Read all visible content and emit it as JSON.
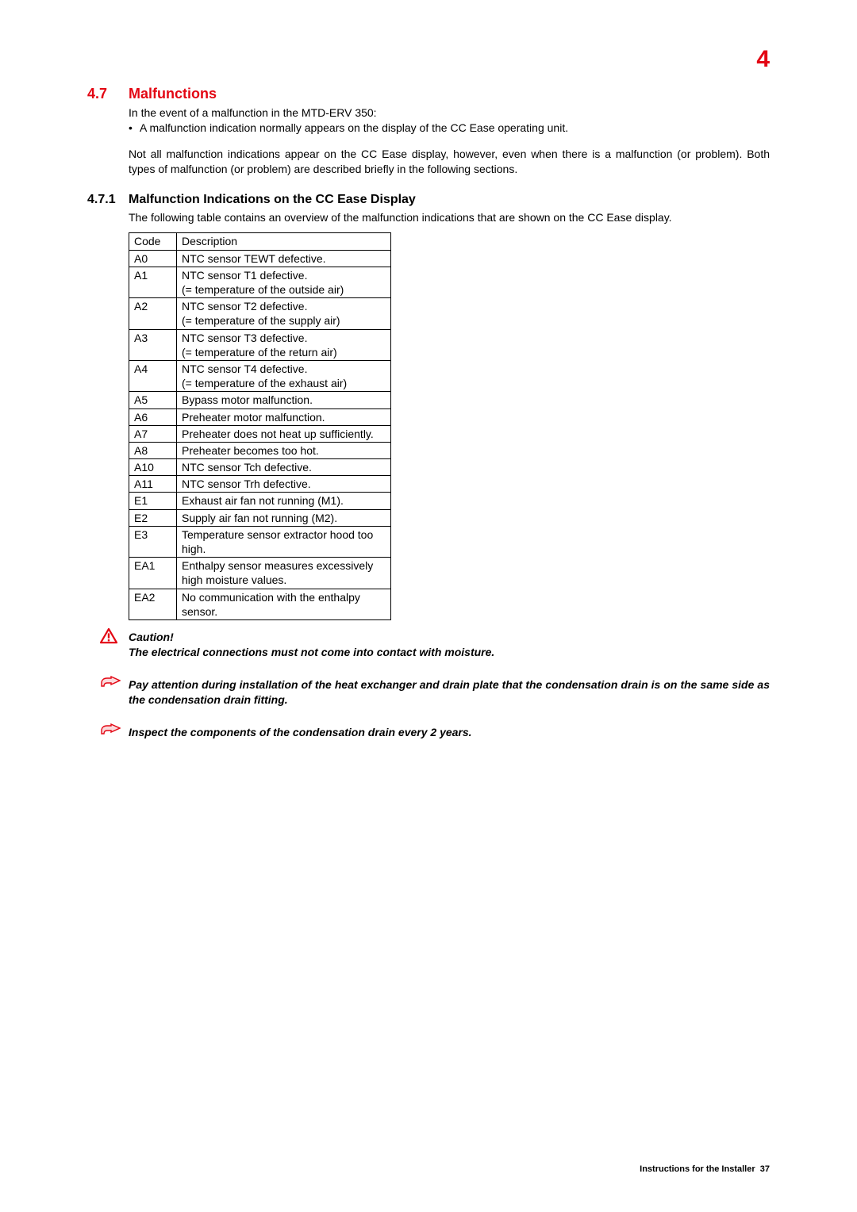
{
  "chapter_number": "4",
  "section": {
    "num": "4.7",
    "title": "Malfunctions"
  },
  "intro_line": "In the event of a malfunction in the MTD-ERV 350:",
  "intro_bullet": "A malfunction indication normally appears on the display of the CC Ease operating unit.",
  "intro_para2": "Not all malfunction indications appear on the CC Ease display, however, even when there is a malfunction (or problem). Both types of malfunction (or problem) are described briefly in the following sections.",
  "subsection": {
    "num": "4.7.1",
    "title": "Malfunction Indications on the CC Ease Display"
  },
  "sub_intro": "The following table contains an overview of the malfunction indications that are shown on the CC Ease display.",
  "table": {
    "head": {
      "code": "Code",
      "desc": "Description"
    },
    "rows": [
      {
        "code": "A0",
        "desc": "NTC sensor TEWT defective."
      },
      {
        "code": "A1",
        "desc": "NTC sensor T1 defective.\n(= temperature of the outside air)"
      },
      {
        "code": "A2",
        "desc": "NTC sensor T2 defective.\n(= temperature of the supply air)"
      },
      {
        "code": "A3",
        "desc": "NTC sensor T3 defective.\n(= temperature of the return air)"
      },
      {
        "code": "A4",
        "desc": "NTC sensor T4 defective.\n(= temperature of the exhaust air)"
      },
      {
        "code": "A5",
        "desc": "Bypass motor malfunction."
      },
      {
        "code": "A6",
        "desc": "Preheater motor malfunction."
      },
      {
        "code": "A7",
        "desc": "Preheater does not heat up sufﬁciently."
      },
      {
        "code": "A8",
        "desc": "Preheater becomes too hot."
      },
      {
        "code": "A10",
        "desc": "NTC sensor Tch defective."
      },
      {
        "code": "A11",
        "desc": "NTC sensor Trh defective."
      },
      {
        "code": "E1",
        "desc": "Exhaust air fan not running (M1)."
      },
      {
        "code": "E2",
        "desc": "Supply air fan not running (M2)."
      },
      {
        "code": "E3",
        "desc": "Temperature sensor extractor hood too high."
      },
      {
        "code": "EA1",
        "desc": "Enthalpy sensor measures excessively high moisture values."
      },
      {
        "code": "EA2",
        "desc": "No communication with the enthalpy sensor."
      }
    ]
  },
  "caution": {
    "heading": "Caution!",
    "text": "The electrical connections must not come into contact with moisture."
  },
  "note1": "Pay attention during installation of the heat exchanger and drain plate that the condensation drain is on the same side as the condensation drain fitting.",
  "note2": "Inspect the components of the condensation drain every 2 years.",
  "footer": {
    "label": "Instructions for the Installer",
    "page": "37"
  },
  "colors": {
    "accent": "#e30613",
    "text": "#000000",
    "bg": "#ffffff"
  }
}
